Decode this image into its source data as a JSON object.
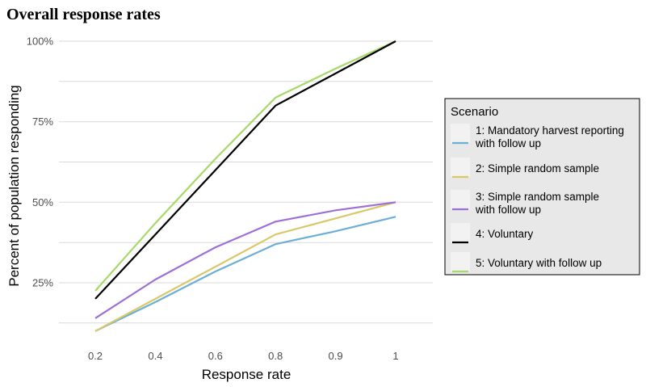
{
  "chart_data": {
    "type": "line",
    "title": "Overall response rates",
    "xlabel": "Response rate",
    "ylabel": "Percent of population responding",
    "categories": [
      "0.2",
      "0.4",
      "0.6",
      "0.8",
      "0.9",
      "1"
    ],
    "yticks": [
      25,
      50,
      75,
      100
    ],
    "ytick_labels": [
      "25%",
      "50%",
      "75%",
      "100%"
    ],
    "ylim": [
      12,
      100
    ],
    "grid": true,
    "legend": {
      "title": "Scenario",
      "placement": "right"
    },
    "series": [
      {
        "name": "1: Mandatory harvest reporting\nwith follow up",
        "color": "#6baed6",
        "values": [
          10,
          19,
          28.5,
          37,
          41,
          45.5
        ]
      },
      {
        "name": "2: Simple random sample",
        "color": "#d9c86a",
        "values": [
          10,
          20,
          30,
          40,
          45,
          50
        ]
      },
      {
        "name": "3: Simple random sample\nwith follow up",
        "color": "#9e6fd6",
        "values": [
          14,
          26,
          36,
          44,
          47.5,
          50
        ]
      },
      {
        "name": "4: Voluntary",
        "color": "#000000",
        "values": [
          20,
          40,
          60,
          80,
          90,
          100
        ]
      },
      {
        "name": "5: Voluntary with follow up",
        "color": "#a6d96a",
        "values": [
          22.5,
          43.5,
          63.5,
          82.5,
          91.5,
          100
        ]
      }
    ]
  }
}
